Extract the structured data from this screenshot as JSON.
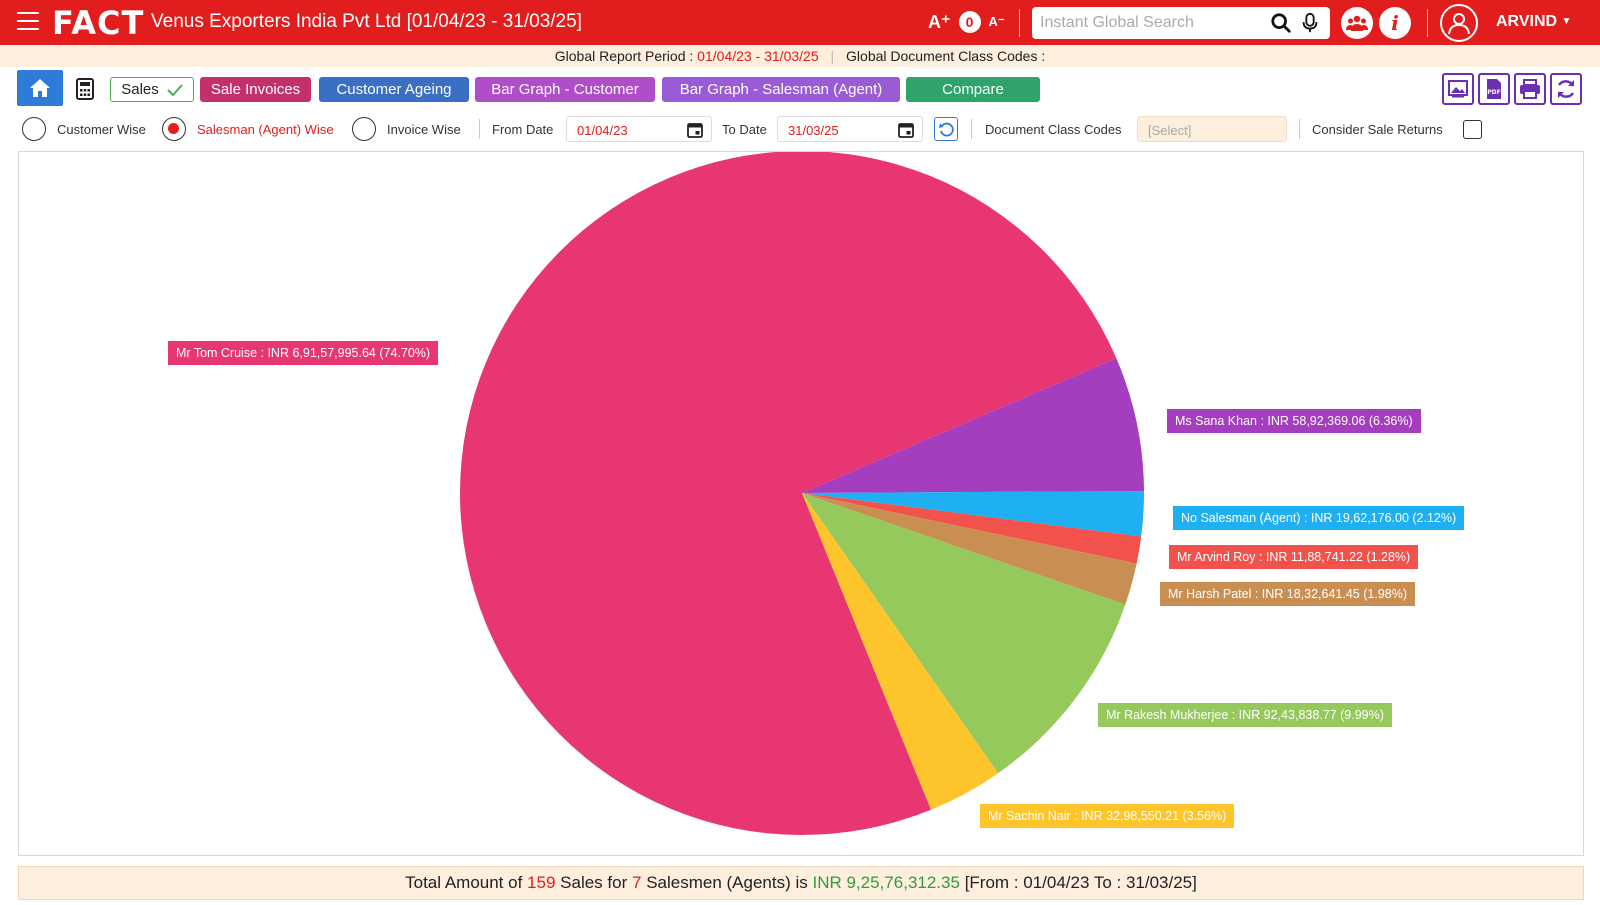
{
  "header": {
    "brand": "FACT",
    "company_title": "Venus Exporters India Pvt Ltd [01/04/23 - 31/03/25]",
    "font_increase": "A⁺",
    "font_reset": "0",
    "font_decrease": "A⁻",
    "search_placeholder": "Instant Global Search",
    "user_name": "ARVIND"
  },
  "period_bar": {
    "period_label": "Global Report Period :",
    "period_value": "01/04/23 - 31/03/25",
    "doc_codes_label": "Global Document Class Codes :"
  },
  "toolbar": {
    "tabs": [
      {
        "label": "Sales",
        "color": "#ffffff"
      },
      {
        "label": "Sale Invoices",
        "color": "#c2306e"
      },
      {
        "label": "Customer Ageing",
        "color": "#3b6fc4"
      },
      {
        "label": "Bar Graph - Customer",
        "color": "#b04ec9"
      },
      {
        "label": "Bar Graph - Salesman (Agent)",
        "color": "#9a5cd6"
      },
      {
        "label": "Compare",
        "color": "#2ea36a"
      }
    ]
  },
  "filters": {
    "options": [
      {
        "label": "Customer Wise",
        "checked": false
      },
      {
        "label": "Salesman (Agent) Wise",
        "checked": true
      },
      {
        "label": "Invoice Wise",
        "checked": false
      }
    ],
    "from_date_label": "From Date",
    "from_date": "01/04/23",
    "to_date_label": "To Date",
    "to_date": "31/03/25",
    "doc_class_label": "Document Class Codes",
    "doc_class_placeholder": "[Select]",
    "sale_returns_label": "Consider Sale Returns"
  },
  "chart_data": {
    "type": "pie",
    "slices": [
      {
        "label": "Mr Tom Cruise : INR 6,91,57,995.64 (74.70%)",
        "value": 74.7,
        "color": "#e83673"
      },
      {
        "label": "Ms Sana Khan : INR 58,92,369.06 (6.36%)",
        "value": 6.36,
        "color": "#a43dbe"
      },
      {
        "label": "No Salesman (Agent) : INR 19,62,176.00 (2.12%)",
        "value": 2.12,
        "color": "#1eb0f2"
      },
      {
        "label": "Mr Arvind Roy : INR 11,88,741.22 (1.28%)",
        "value": 1.28,
        "color": "#f2524c"
      },
      {
        "label": "Mr Harsh Patel : INR 18,32,641.45 (1.98%)",
        "value": 1.98,
        "color": "#c98f52"
      },
      {
        "label": "Mr Rakesh Mukherjee : INR 92,43,838.77 (9.99%)",
        "value": 9.99,
        "color": "#95c95b"
      },
      {
        "label": "Mr Sachin Nair : INR 32,98,550.21 (3.56%)",
        "value": 3.56,
        "color": "#fdc52b"
      }
    ]
  },
  "footer": {
    "prefix": "Total Amount of",
    "sales_count": "159",
    "mid1": "Sales for",
    "salesmen_count": "7",
    "mid2": "Salesmen (Agents) is",
    "amount": "INR 9,25,76,312.35",
    "suffix": "[From : 01/04/23 To : 31/03/25]"
  }
}
